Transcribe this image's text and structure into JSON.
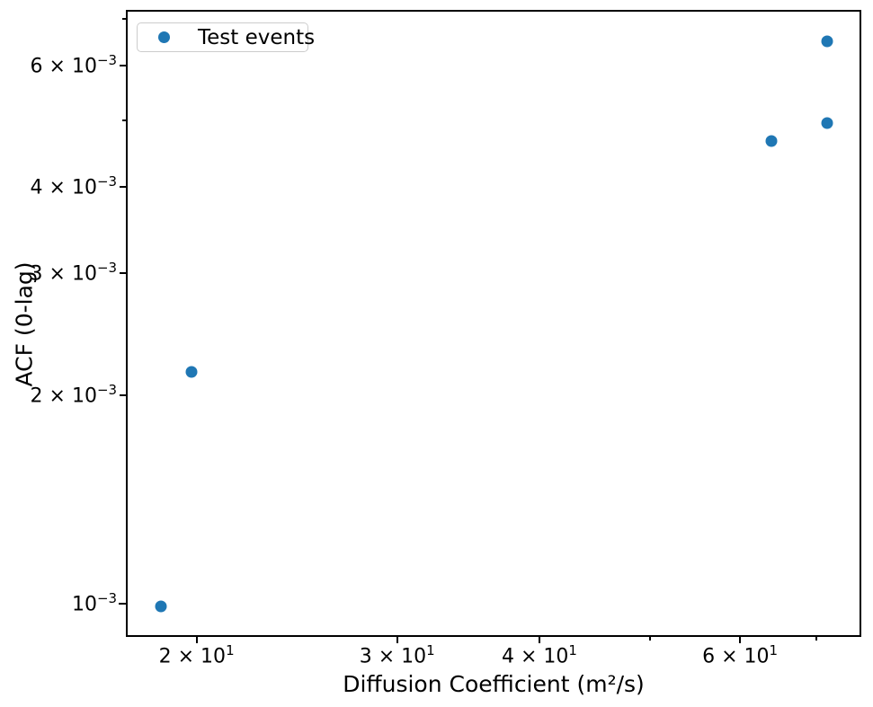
{
  "chart_data": {
    "type": "scatter",
    "title": "",
    "xlabel": "Diffusion Coefficient (m²/s)",
    "ylabel": "ACF (0-lag)",
    "xscale": "log",
    "yscale": "log",
    "xlim": [
      17.4,
      76.4
    ],
    "ylim": [
      0.0009,
      0.00717
    ],
    "grid": false,
    "legend_position": "upper left",
    "marker_color": "#1f77b4",
    "series": [
      {
        "name": "Test events",
        "color": "#1f77b4",
        "points": [
          {
            "x": 18.6,
            "y": 0.00099
          },
          {
            "x": 19.8,
            "y": 0.00216
          },
          {
            "x": 63.9,
            "y": 0.00466
          },
          {
            "x": 71.5,
            "y": 0.00495
          },
          {
            "x": 71.5,
            "y": 0.0065
          }
        ]
      }
    ],
    "x_ticks": [
      {
        "value": 20,
        "base": "2 × 10",
        "exp": "1"
      },
      {
        "value": 30,
        "base": "3 × 10",
        "exp": "1"
      },
      {
        "value": 40,
        "base": "4 × 10",
        "exp": "1"
      },
      {
        "value": 50,
        "base": "",
        "exp": ""
      },
      {
        "value": 60,
        "base": "6 × 10",
        "exp": "1"
      },
      {
        "value": 70,
        "base": "",
        "exp": ""
      }
    ],
    "y_ticks": [
      {
        "value": 0.001,
        "base": "10",
        "exp": "−3",
        "major": true
      },
      {
        "value": 0.002,
        "base": "2 × 10",
        "exp": "−3"
      },
      {
        "value": 0.003,
        "base": "3 × 10",
        "exp": "−3"
      },
      {
        "value": 0.004,
        "base": "4 × 10",
        "exp": "−3"
      },
      {
        "value": 0.005,
        "base": "",
        "exp": ""
      },
      {
        "value": 0.006,
        "base": "6 × 10",
        "exp": "−3"
      },
      {
        "value": 0.007,
        "base": "",
        "exp": ""
      }
    ]
  }
}
